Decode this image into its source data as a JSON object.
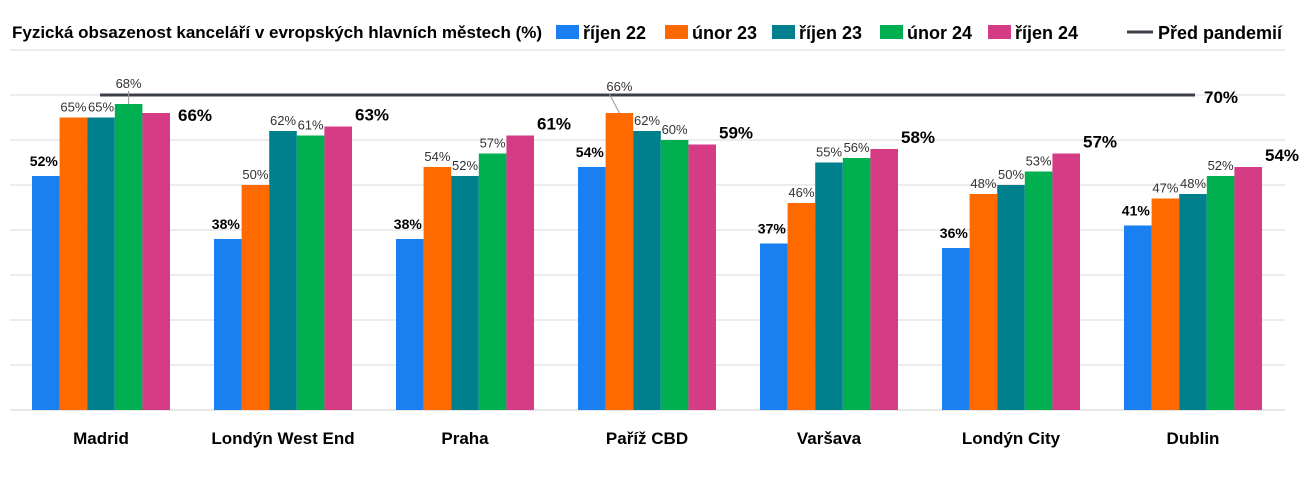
{
  "chart_data": {
    "type": "bar",
    "title": "Fyzická obsazenost kanceláří v evropských hlavních městech (%)",
    "categories": [
      "Madrid",
      "Londýn West End",
      "Praha",
      "Paříž CBD",
      "Varšava",
      "Londýn City",
      "Dublin"
    ],
    "series": [
      {
        "name": "říjen 22",
        "color": "#1a7ff0",
        "values": [
          52,
          38,
          38,
          54,
          37,
          36,
          41
        ]
      },
      {
        "name": "únor 23",
        "color": "#ff6a00",
        "values": [
          65,
          50,
          54,
          66,
          46,
          48,
          47
        ]
      },
      {
        "name": "říjen 23",
        "color": "#007f8c",
        "values": [
          65,
          62,
          52,
          62,
          55,
          50,
          48
        ]
      },
      {
        "name": "únor 24",
        "color": "#00b050",
        "values": [
          68,
          61,
          57,
          60,
          56,
          53,
          52
        ]
      },
      {
        "name": "říjen 24",
        "color": "#d63b86",
        "values": [
          66,
          63,
          61,
          59,
          58,
          57,
          54
        ]
      }
    ],
    "reference_line": {
      "name": "Před pandemií",
      "value": 70,
      "label": "70%",
      "color": "#3b3f4a"
    },
    "ylim": [
      0,
      80
    ],
    "grid": true,
    "legend_position": "top"
  }
}
